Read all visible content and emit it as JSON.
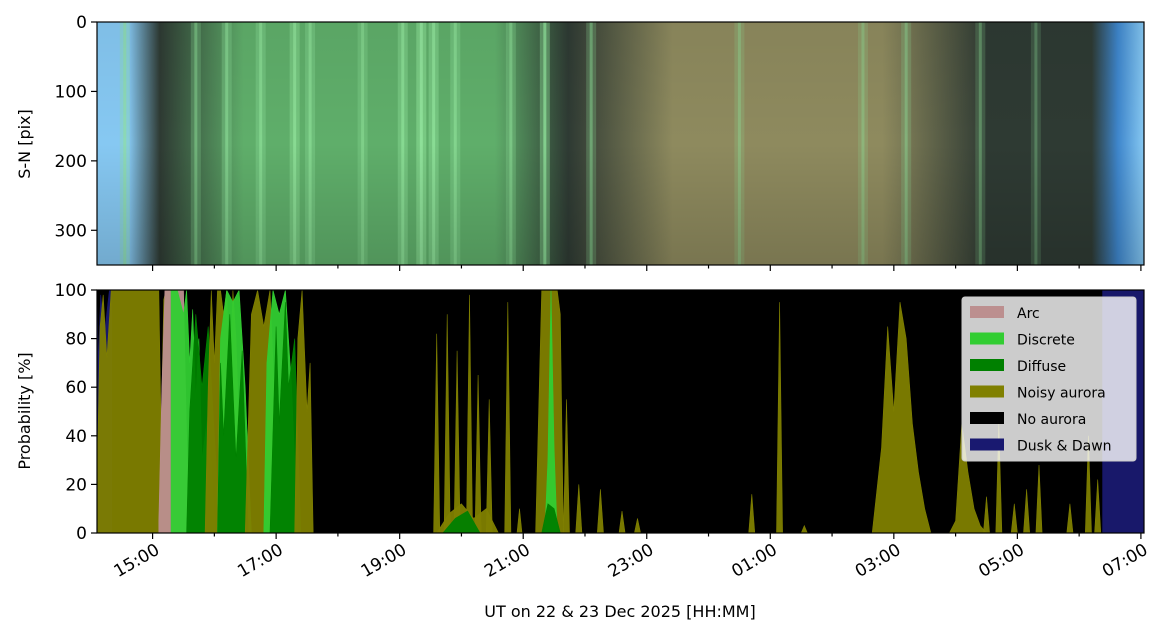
{
  "chart_data": [
    {
      "type": "heatmap",
      "description_of_image": "keogram",
      "ylabel": "S-N [pix]",
      "ylim": [
        350,
        0
      ],
      "yticks": [
        "0",
        "100",
        "200",
        "300"
      ],
      "yticks_values": [
        0,
        100,
        200,
        300
      ],
      "xlim_hours": [
        14.1,
        31.05
      ],
      "colors": {
        "twilight_edge": "#86c8f2",
        "twilight_deep": "#3e86cc",
        "night_dark": "#2e3a33",
        "aurora_green": "#8fe29a",
        "aurora_mid": "#5fae6a",
        "brown_glow": "#8e8a5e"
      },
      "bright_bands_hours": [
        {
          "h": 14.55,
          "a": 0.55
        },
        {
          "h": 15.7,
          "a": 0.45
        },
        {
          "h": 16.2,
          "a": 0.55
        },
        {
          "h": 16.75,
          "a": 0.6
        },
        {
          "h": 17.3,
          "a": 0.75
        },
        {
          "h": 17.55,
          "a": 0.6
        },
        {
          "h": 18.4,
          "a": 0.5
        },
        {
          "h": 19.05,
          "a": 0.7
        },
        {
          "h": 19.35,
          "a": 0.95
        },
        {
          "h": 19.55,
          "a": 0.8
        },
        {
          "h": 19.9,
          "a": 0.6
        },
        {
          "h": 20.8,
          "a": 0.5
        },
        {
          "h": 21.35,
          "a": 0.75
        },
        {
          "h": 22.1,
          "a": 0.45
        },
        {
          "h": 24.5,
          "a": 0.35
        },
        {
          "h": 26.5,
          "a": 0.35
        },
        {
          "h": 27.2,
          "a": 0.4
        },
        {
          "h": 28.4,
          "a": 0.35
        },
        {
          "h": 29.3,
          "a": 0.3
        }
      ]
    },
    {
      "type": "area",
      "ylabel": "Probability [%]",
      "ylim": [
        0,
        100
      ],
      "yticks": [
        "0",
        "20",
        "40",
        "60",
        "80",
        "100"
      ],
      "yticks_values": [
        0,
        20,
        40,
        60,
        80,
        100
      ],
      "xlabel": "UT on 22 & 23 Dec 2025 [HH:MM]",
      "xlim_hours": [
        14.1,
        31.05
      ],
      "xticks": [
        {
          "h": 15,
          "label": "15:00"
        },
        {
          "h": 17,
          "label": "17:00"
        },
        {
          "h": 19,
          "label": "19:00"
        },
        {
          "h": 21,
          "label": "21:00"
        },
        {
          "h": 23,
          "label": "23:00"
        },
        {
          "h": 25,
          "label": "01:00"
        },
        {
          "h": 27,
          "label": "03:00"
        },
        {
          "h": 29,
          "label": "05:00"
        },
        {
          "h": 31,
          "label": "07:00"
        }
      ],
      "legend": [
        {
          "label": "Arc",
          "color": "#bc8f8f"
        },
        {
          "label": "Discrete",
          "color": "#32cd32"
        },
        {
          "label": "Diffuse",
          "color": "#008000"
        },
        {
          "label": "Noisy aurora",
          "color": "#808000"
        },
        {
          "label": "No aurora",
          "color": "#000000"
        },
        {
          "label": "Dusk & Dawn",
          "color": "#191970"
        }
      ],
      "legend_position": "upper-right",
      "background_class": "No aurora",
      "regions": [
        {
          "class": "Dusk & Dawn",
          "x": [
            14.1,
            14.12,
            14.16,
            14.22,
            14.3,
            14.34
          ],
          "y": [
            100,
            70,
            98,
            82,
            100,
            100
          ]
        },
        {
          "class": "Dusk & Dawn",
          "x": [
            30.38,
            30.6,
            30.9,
            31.05
          ],
          "y": [
            100,
            100,
            100,
            100
          ]
        },
        {
          "class": "Noisy aurora",
          "x": [
            14.1,
            14.15,
            14.2,
            14.26,
            14.33,
            14.4,
            14.5,
            14.7,
            14.9,
            15.1,
            15.14,
            15.18,
            15.22,
            15.28
          ],
          "y": [
            20,
            85,
            98,
            72,
            100,
            100,
            100,
            100,
            100,
            100,
            40,
            96,
            100,
            100
          ]
        },
        {
          "class": "Arc",
          "x": [
            15.1,
            15.15,
            15.2,
            15.3,
            15.42,
            15.5,
            15.55,
            15.6
          ],
          "y": [
            5,
            60,
            100,
            100,
            100,
            100,
            40,
            0
          ]
        },
        {
          "class": "Discrete",
          "x": [
            15.3,
            15.4,
            15.5,
            15.55,
            15.6,
            15.65,
            15.7,
            15.75,
            15.8,
            15.9,
            16.0
          ],
          "y": [
            100,
            100,
            90,
            100,
            70,
            92,
            55,
            80,
            30,
            50,
            5
          ]
        },
        {
          "class": "Diffuse",
          "x": [
            15.55,
            15.6,
            15.7,
            15.8,
            15.9,
            16.0,
            16.1
          ],
          "y": [
            0,
            50,
            90,
            60,
            85,
            40,
            0
          ]
        },
        {
          "class": "Noisy aurora",
          "x": [
            15.85,
            15.9,
            15.95,
            16.0,
            16.05,
            16.1,
            16.15,
            16.2,
            16.25,
            16.3,
            16.35,
            16.4,
            16.5
          ],
          "y": [
            0,
            60,
            100,
            70,
            100,
            100,
            90,
            100,
            60,
            100,
            80,
            40,
            0
          ]
        },
        {
          "class": "Discrete",
          "x": [
            16.05,
            16.1,
            16.2,
            16.3,
            16.4,
            16.5,
            16.6
          ],
          "y": [
            0,
            80,
            100,
            95,
            100,
            60,
            0
          ]
        },
        {
          "class": "Diffuse",
          "x": [
            16.05,
            16.1,
            16.15,
            16.25,
            16.35,
            16.45,
            16.55
          ],
          "y": [
            0,
            70,
            40,
            90,
            30,
            75,
            0
          ]
        },
        {
          "class": "Noisy aurora",
          "x": [
            16.5,
            16.6,
            16.7,
            16.8,
            16.9,
            17.0,
            17.1
          ],
          "y": [
            0,
            90,
            100,
            85,
            100,
            40,
            0
          ]
        },
        {
          "class": "Discrete",
          "x": [
            16.8,
            16.85,
            16.95,
            17.05,
            17.15,
            17.25,
            17.35
          ],
          "y": [
            0,
            70,
            100,
            90,
            100,
            60,
            0
          ]
        },
        {
          "class": "Diffuse",
          "x": [
            16.9,
            17.0,
            17.05,
            17.15,
            17.2,
            17.3,
            17.4
          ],
          "y": [
            0,
            85,
            45,
            95,
            60,
            80,
            0
          ]
        },
        {
          "class": "Noisy aurora",
          "x": [
            17.3,
            17.35,
            17.42,
            17.5,
            17.55,
            17.6
          ],
          "y": [
            0,
            80,
            100,
            50,
            70,
            0
          ]
        },
        {
          "class": "Noisy aurora",
          "x": [
            19.55,
            19.6,
            19.65
          ],
          "y": [
            0,
            82,
            0
          ]
        },
        {
          "class": "Noisy aurora",
          "x": [
            19.72,
            19.77,
            19.82
          ],
          "y": [
            0,
            90,
            0
          ]
        },
        {
          "class": "Noisy aurora",
          "x": [
            19.88,
            19.93,
            19.98
          ],
          "y": [
            0,
            75,
            0
          ]
        },
        {
          "class": "Noisy aurora",
          "x": [
            20.08,
            20.13,
            20.18
          ],
          "y": [
            0,
            98,
            0
          ]
        },
        {
          "class": "Noisy aurora",
          "x": [
            20.22,
            20.27,
            20.32
          ],
          "y": [
            0,
            65,
            0
          ]
        },
        {
          "class": "Noisy aurora",
          "x": [
            20.4,
            20.45,
            20.5
          ],
          "y": [
            0,
            55,
            0
          ]
        },
        {
          "class": "Noisy aurora",
          "x": [
            20.7,
            20.75,
            20.8
          ],
          "y": [
            0,
            95,
            0
          ]
        },
        {
          "class": "Noisy aurora",
          "x": [
            20.9,
            20.94,
            20.98
          ],
          "y": [
            0,
            10,
            0
          ]
        },
        {
          "class": "Noisy aurora",
          "x": [
            19.6,
            19.8,
            20.0,
            20.2,
            20.4,
            20.6
          ],
          "y": [
            0,
            8,
            12,
            6,
            10,
            0
          ]
        },
        {
          "class": "Diffuse",
          "x": [
            19.7,
            19.9,
            20.1,
            20.3
          ],
          "y": [
            0,
            6,
            9,
            0
          ]
        },
        {
          "class": "Noisy aurora",
          "x": [
            21.2,
            21.3,
            21.35,
            21.45,
            21.55,
            21.6,
            21.65
          ],
          "y": [
            0,
            100,
            100,
            100,
            100,
            90,
            0
          ]
        },
        {
          "class": "Discrete",
          "x": [
            21.35,
            21.4,
            21.45,
            21.5,
            21.55
          ],
          "y": [
            0,
            30,
            100,
            35,
            0
          ]
        },
        {
          "class": "Diffuse",
          "x": [
            21.3,
            21.4,
            21.5,
            21.6
          ],
          "y": [
            0,
            12,
            10,
            0
          ]
        },
        {
          "class": "Noisy aurora",
          "x": [
            21.65,
            21.7,
            21.75
          ],
          "y": [
            0,
            55,
            0
          ]
        },
        {
          "class": "Noisy aurora",
          "x": [
            21.85,
            21.9,
            21.95
          ],
          "y": [
            0,
            20,
            0
          ]
        },
        {
          "class": "Noisy aurora",
          "x": [
            22.2,
            22.25,
            22.3
          ],
          "y": [
            0,
            18,
            0
          ]
        },
        {
          "class": "Noisy aurora",
          "x": [
            22.55,
            22.6,
            22.65
          ],
          "y": [
            0,
            9,
            0
          ]
        },
        {
          "class": "Noisy aurora",
          "x": [
            22.8,
            22.85,
            22.9
          ],
          "y": [
            0,
            6,
            0
          ]
        },
        {
          "class": "Noisy aurora",
          "x": [
            24.65,
            24.7,
            24.75
          ],
          "y": [
            0,
            16,
            0
          ]
        },
        {
          "class": "Noisy aurora",
          "x": [
            25.1,
            25.15,
            25.2
          ],
          "y": [
            0,
            95,
            0
          ]
        },
        {
          "class": "Noisy aurora",
          "x": [
            25.5,
            25.55,
            25.6
          ],
          "y": [
            0,
            3,
            0
          ]
        },
        {
          "class": "Noisy aurora",
          "x": [
            26.65,
            26.8,
            26.9,
            27.0,
            27.1,
            27.2,
            27.3,
            27.4,
            27.5,
            27.6
          ],
          "y": [
            0,
            35,
            85,
            50,
            95,
            80,
            45,
            25,
            10,
            0
          ]
        },
        {
          "class": "Noisy aurora",
          "x": [
            27.9,
            28.0,
            28.1,
            28.2,
            28.3,
            28.4,
            28.5
          ],
          "y": [
            0,
            5,
            45,
            25,
            10,
            3,
            0
          ]
        },
        {
          "class": "Noisy aurora",
          "x": [
            28.45,
            28.5,
            28.55
          ],
          "y": [
            0,
            15,
            0
          ]
        },
        {
          "class": "Noisy aurora",
          "x": [
            28.65,
            28.7,
            28.75
          ],
          "y": [
            0,
            45,
            0
          ]
        },
        {
          "class": "Noisy aurora",
          "x": [
            28.9,
            28.95,
            29.0
          ],
          "y": [
            0,
            12,
            0
          ]
        },
        {
          "class": "Noisy aurora",
          "x": [
            29.1,
            29.15,
            29.2
          ],
          "y": [
            0,
            18,
            0
          ]
        },
        {
          "class": "Noisy aurora",
          "x": [
            29.3,
            29.35,
            29.4
          ],
          "y": [
            0,
            28,
            0
          ]
        },
        {
          "class": "Noisy aurora",
          "x": [
            29.8,
            29.85,
            29.9
          ],
          "y": [
            0,
            12,
            0
          ]
        },
        {
          "class": "Noisy aurora",
          "x": [
            30.1,
            30.15,
            30.2
          ],
          "y": [
            0,
            40,
            0
          ]
        },
        {
          "class": "Noisy aurora",
          "x": [
            30.25,
            30.3,
            30.35
          ],
          "y": [
            0,
            22,
            0
          ]
        }
      ]
    }
  ]
}
